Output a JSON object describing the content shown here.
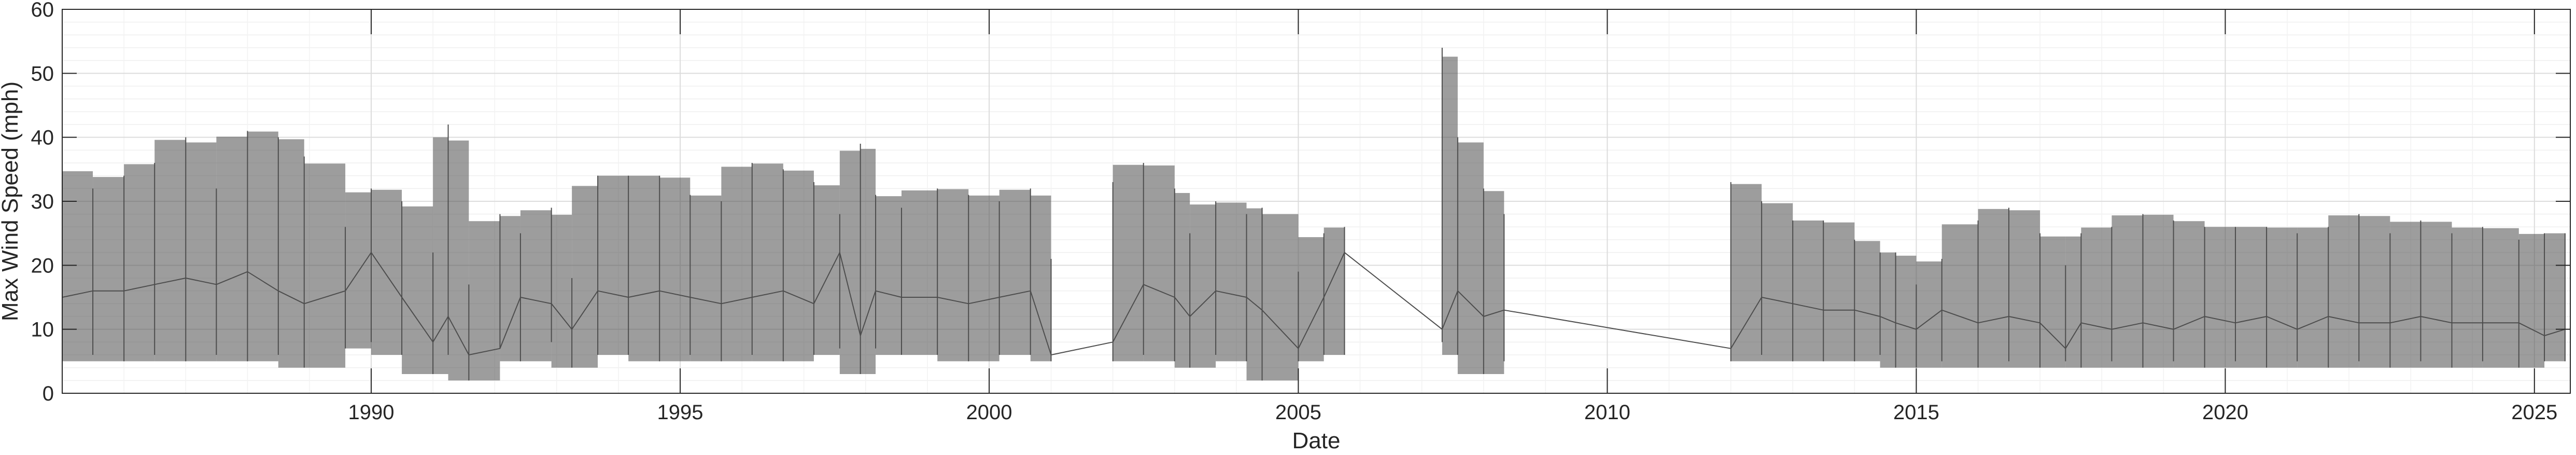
{
  "chart_data": {
    "type": "line",
    "title": "",
    "xlabel": "Date",
    "ylabel": "Max Wind Speed (mph)",
    "xlim": [
      "1985-01-01",
      "2025-08-01"
    ],
    "ylim": [
      0,
      60
    ],
    "x_ticks": [
      {
        "label": "1990",
        "date": "1990-01-01"
      },
      {
        "label": "1995",
        "date": "1995-01-01"
      },
      {
        "label": "2000",
        "date": "2000-01-01"
      },
      {
        "label": "2005",
        "date": "2005-01-01"
      },
      {
        "label": "2010",
        "date": "2010-01-01"
      },
      {
        "label": "2015",
        "date": "2015-01-01"
      },
      {
        "label": "2020",
        "date": "2020-01-01"
      },
      {
        "label": "2025",
        "date": "2025-01-01"
      }
    ],
    "y_ticks": [
      0,
      10,
      20,
      30,
      40,
      50,
      60
    ],
    "grid": true,
    "minor_grid": true,
    "legend": "none",
    "line_color": "#4d4d4d",
    "series": [
      {
        "x": [
          "1985-01",
          "1985-07",
          "1986-01",
          "1986-07",
          "1987-01",
          "1987-07",
          "1988-01",
          "1988-07",
          "1988-12",
          "1989-08",
          "1990-01",
          "1990-07",
          "1991-01",
          "1991-04",
          "1991-08",
          "1992-02",
          "1992-06",
          "1992-12",
          "1993-04",
          "1993-09",
          "1994-03",
          "1994-09",
          "1995-03",
          "1995-09",
          "1996-03",
          "1996-09",
          "1997-03",
          "1997-08",
          "1997-12",
          "1998-03",
          "1998-08",
          "1999-03",
          "1999-09",
          "2000-03",
          "2000-09",
          "2001-01",
          "2002-01",
          "2002-07",
          "2003-01",
          "2003-04",
          "2003-09",
          "2004-03",
          "2004-06",
          "2005-01",
          "2005-06",
          "2005-10",
          "2007-05",
          "2007-08",
          "2008-01",
          "2008-05",
          "2012-01",
          "2012-07",
          "2013-01",
          "2013-07",
          "2014-01",
          "2014-06",
          "2014-09",
          "2015-01",
          "2015-06",
          "2016-01",
          "2016-07",
          "2017-01",
          "2017-06",
          "2017-09",
          "2018-03",
          "2018-09",
          "2019-03",
          "2019-09",
          "2020-03",
          "2020-09",
          "2021-03",
          "2021-09",
          "2022-03",
          "2022-09",
          "2023-03",
          "2023-09",
          "2024-03",
          "2024-10",
          "2025-03",
          "2025-07"
        ],
        "y": [
          15,
          16,
          16,
          17,
          18,
          17,
          19,
          16,
          14,
          16,
          22,
          15,
          8,
          12,
          6,
          7,
          15,
          14,
          10,
          16,
          15,
          16,
          15,
          14,
          15,
          16,
          14,
          22,
          9,
          16,
          15,
          15,
          14,
          15,
          16,
          6,
          8,
          17,
          15,
          12,
          16,
          15,
          13,
          7,
          15,
          22,
          10,
          16,
          12,
          13,
          7,
          15,
          14,
          13,
          13,
          12,
          11,
          10,
          13,
          11,
          12,
          11,
          7,
          11,
          10,
          11,
          10,
          12,
          11,
          12,
          10,
          12,
          11,
          11,
          12,
          11,
          11,
          11,
          9,
          10
        ],
        "max": [
          35,
          32,
          34,
          36,
          40,
          32,
          41,
          40,
          37,
          26,
          32,
          30,
          22,
          42,
          17,
          28,
          25,
          29,
          18,
          34,
          34,
          34,
          31,
          30,
          36,
          35,
          33,
          28,
          39,
          31,
          29,
          32,
          31,
          30,
          32,
          21,
          33,
          36,
          32,
          25,
          30,
          28,
          29,
          19,
          25,
          26,
          54,
          40,
          32,
          28,
          33,
          30,
          27,
          27,
          24,
          22,
          22,
          17,
          21,
          27,
          29,
          25,
          20,
          25,
          26,
          28,
          27,
          26,
          26,
          26,
          25,
          26,
          28,
          25,
          27,
          25,
          26,
          24,
          25,
          25
        ],
        "min": [
          5,
          6,
          5,
          6,
          5,
          6,
          5,
          6,
          4,
          7,
          8,
          6,
          3,
          6,
          2,
          7,
          5,
          8,
          4,
          6,
          6,
          5,
          6,
          5,
          6,
          5,
          6,
          7,
          3,
          7,
          6,
          6,
          5,
          6,
          6,
          5,
          5,
          6,
          5,
          4,
          6,
          5,
          2,
          5,
          6,
          6,
          8,
          6,
          3,
          5,
          5,
          6,
          5,
          5,
          5,
          6,
          4,
          4,
          5,
          4,
          5,
          4,
          5,
          4,
          5,
          4,
          5,
          4,
          5,
          4,
          5,
          4,
          5,
          4,
          5,
          4,
          5,
          4,
          5,
          5
        ]
      }
    ]
  }
}
